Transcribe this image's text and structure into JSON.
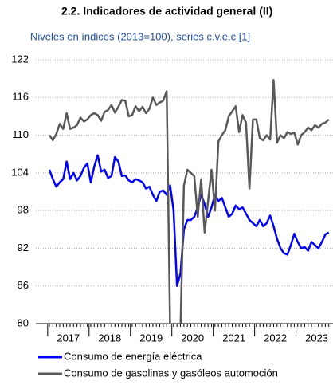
{
  "chart_data": {
    "type": "line",
    "title": "2.2. Indicadores de actividad general (II)",
    "subtitle": "Niveles en índices (2013=100), series c.v.e.c [1]",
    "categories": [
      "2017",
      null,
      null,
      null,
      null,
      null,
      null,
      null,
      null,
      null,
      null,
      null,
      "2018",
      null,
      null,
      null,
      null,
      null,
      null,
      null,
      null,
      null,
      null,
      null,
      "2019",
      null,
      null,
      null,
      null,
      null,
      null,
      null,
      null,
      null,
      null,
      null,
      "2020",
      null,
      null,
      null,
      null,
      null,
      null,
      null,
      null,
      null,
      null,
      null,
      "2021",
      null,
      null,
      null,
      null,
      null,
      null,
      null,
      null,
      null,
      null,
      null,
      "2022",
      null,
      null,
      null,
      null,
      null,
      null,
      null,
      null,
      null,
      null,
      null,
      "2023",
      null,
      null,
      null,
      null,
      null,
      null,
      null,
      null,
      null
    ],
    "series": [
      {
        "name": "Consumo de energía eléctrica",
        "color": "#0000ff",
        "values": [
          104.5,
          103,
          101.8,
          102.5,
          103,
          105.8,
          103,
          104,
          102.8,
          103.5,
          104.8,
          105.5,
          102.5,
          105,
          106.8,
          104.2,
          104.5,
          103.2,
          103.5,
          106.5,
          105.8,
          103.5,
          103.6,
          102.8,
          102.5,
          103,
          102.8,
          102.5,
          101.5,
          101.8,
          100.5,
          99.5,
          101,
          101.2,
          100.5,
          102,
          98,
          86,
          88,
          95,
          96.5,
          96.5,
          97,
          98.5,
          100.5,
          99,
          97,
          98.5,
          100.5,
          99.5,
          100,
          98.5,
          97,
          97.5,
          98.8,
          98.2,
          98.5,
          97.5,
          96.5,
          96,
          95.5,
          96.5,
          95.5,
          96,
          97.2,
          95.5,
          93.5,
          92,
          91.2,
          91,
          92.5,
          94.3,
          93,
          92,
          92.2,
          91.6,
          93,
          92.5,
          92,
          93,
          94.2,
          94.5
        ]
      },
      {
        "name": "Consumo de gasolinas y gasóleos automoción",
        "color": "#595959",
        "values": [
          110,
          109.2,
          110.2,
          111.8,
          111,
          113.5,
          111,
          111.2,
          111.6,
          112.8,
          112.2,
          112.5,
          113.2,
          113.5,
          113.2,
          112.3,
          113.7,
          114,
          114.8,
          113.6,
          114.5,
          115.6,
          115.5,
          113,
          113.2,
          114.6,
          113.8,
          114.5,
          113.5,
          114.2,
          116,
          114.8,
          115.2,
          115.5,
          117,
          79,
          79,
          79,
          79,
          102,
          104.5,
          104,
          103.5,
          97,
          103,
          94.5,
          99.5,
          104.5,
          98,
          109,
          110,
          110.8,
          113,
          113.8,
          114.6,
          110.5,
          113.2,
          112,
          101.5,
          112.5,
          112.5,
          109.5,
          109.2,
          110,
          109.3,
          118.8,
          108.8,
          110,
          109.5,
          110.5,
          110.2,
          110.4,
          108.5,
          110,
          110.5,
          111.2,
          110.8,
          111.6,
          111.2,
          111.8,
          112,
          112.5
        ]
      }
    ],
    "ylim": [
      80,
      122
    ],
    "yticks": [
      80,
      86,
      92,
      98,
      104,
      110,
      116,
      122
    ],
    "grid": true
  }
}
